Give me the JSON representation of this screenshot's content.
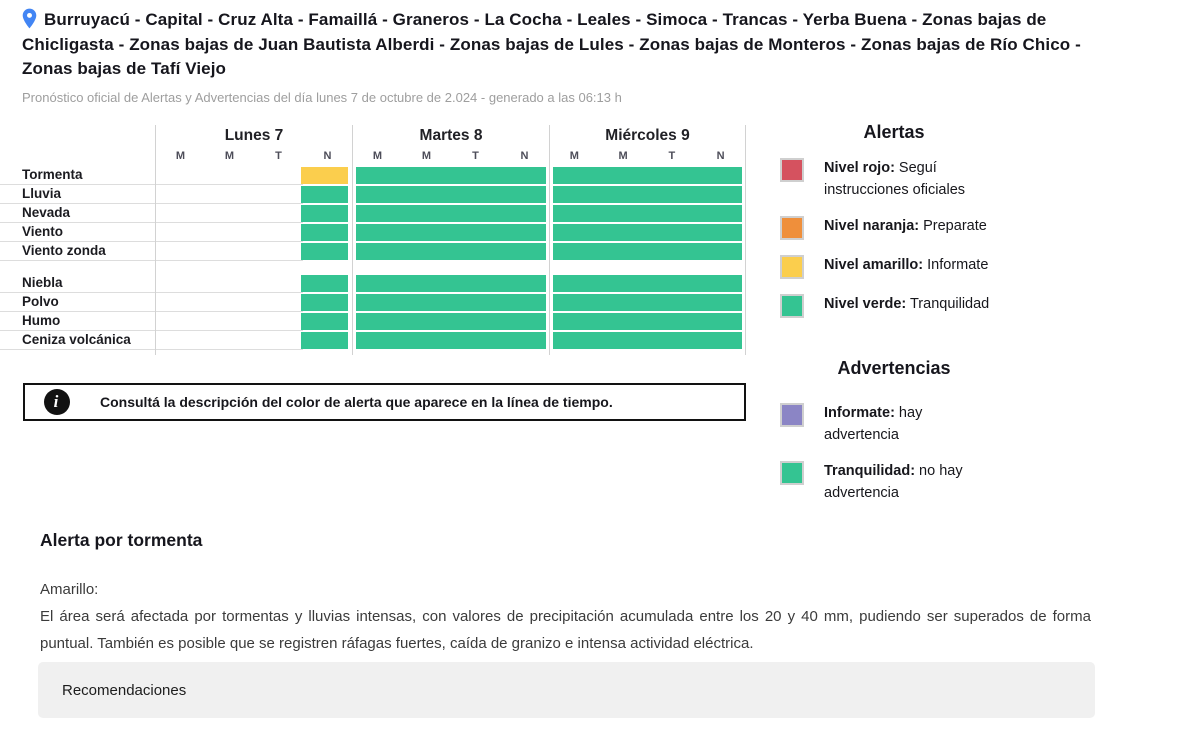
{
  "header": {
    "title": "Burruyacú - Capital - Cruz Alta - Famaillá - Graneros - La Cocha - Leales - Simoca - Trancas - Yerba Buena - Zonas bajas de Chicligasta - Zonas bajas de Juan Bautista Alberdi - Zonas bajas de Lules - Zonas bajas de Monteros - Zonas bajas de Río Chico - Zonas bajas de Tafí Viejo",
    "subtitle": "Pronóstico oficial de Alertas y Advertencias del día lunes 7 de octubre de 2.024 - generado a las 06:13 h"
  },
  "colors": {
    "green": "#34c492",
    "yellow": "#fbce4d",
    "red": "#d5525f",
    "orange": "#ef8f3b",
    "purple": "#8b85c5",
    "pin_blue": "#4285f4"
  },
  "timeline": {
    "days": [
      "Lunes 7",
      "Martes 8",
      "Miércoles 9"
    ],
    "period_labels": [
      "M",
      "M",
      "T",
      "N"
    ],
    "sections": [
      {
        "rows": [
          {
            "label": "Tormenta",
            "cells": [
              {
                "day": 0,
                "period": 3,
                "level": "yellow"
              },
              {
                "day": 1,
                "full": true,
                "level": "green"
              },
              {
                "day": 2,
                "full": true,
                "level": "green"
              }
            ]
          },
          {
            "label": "Lluvia",
            "cells": [
              {
                "day": 0,
                "period": 3,
                "level": "green"
              },
              {
                "day": 1,
                "full": true,
                "level": "green"
              },
              {
                "day": 2,
                "full": true,
                "level": "green"
              }
            ]
          },
          {
            "label": "Nevada",
            "cells": [
              {
                "day": 0,
                "period": 3,
                "level": "green"
              },
              {
                "day": 1,
                "full": true,
                "level": "green"
              },
              {
                "day": 2,
                "full": true,
                "level": "green"
              }
            ]
          },
          {
            "label": "Viento",
            "cells": [
              {
                "day": 0,
                "period": 3,
                "level": "green"
              },
              {
                "day": 1,
                "full": true,
                "level": "green"
              },
              {
                "day": 2,
                "full": true,
                "level": "green"
              }
            ]
          },
          {
            "label": "Viento zonda",
            "cells": [
              {
                "day": 0,
                "period": 3,
                "level": "green"
              },
              {
                "day": 1,
                "full": true,
                "level": "green"
              },
              {
                "day": 2,
                "full": true,
                "level": "green"
              }
            ]
          }
        ]
      },
      {
        "rows": [
          {
            "label": "Niebla",
            "cells": [
              {
                "day": 0,
                "period": 3,
                "level": "green"
              },
              {
                "day": 1,
                "full": true,
                "level": "green"
              },
              {
                "day": 2,
                "full": true,
                "level": "green"
              }
            ]
          },
          {
            "label": "Polvo",
            "cells": [
              {
                "day": 0,
                "period": 3,
                "level": "green"
              },
              {
                "day": 1,
                "full": true,
                "level": "green"
              },
              {
                "day": 2,
                "full": true,
                "level": "green"
              }
            ]
          },
          {
            "label": "Humo",
            "cells": [
              {
                "day": 0,
                "period": 3,
                "level": "green"
              },
              {
                "day": 1,
                "full": true,
                "level": "green"
              },
              {
                "day": 2,
                "full": true,
                "level": "green"
              }
            ]
          },
          {
            "label": "Ceniza volcánica",
            "cells": [
              {
                "day": 0,
                "period": 3,
                "level": "green"
              },
              {
                "day": 1,
                "full": true,
                "level": "green"
              },
              {
                "day": 2,
                "full": true,
                "level": "green"
              }
            ]
          }
        ]
      }
    ]
  },
  "legend": {
    "alerts": {
      "title": "Alertas",
      "items": [
        {
          "color": "red",
          "name": "Nivel rojo:",
          "desc": " Seguí instrucciones oficiales"
        },
        {
          "color": "orange",
          "name": "Nivel naranja:",
          "desc": " Preparate"
        },
        {
          "color": "yellow",
          "name": "Nivel amarillo:",
          "desc": " Informate"
        },
        {
          "color": "green",
          "name": "Nivel verde:",
          "desc": " Tranquilidad"
        }
      ]
    },
    "warnings": {
      "title": "Advertencias",
      "items": [
        {
          "color": "purple",
          "name": "Informate:",
          "desc": " hay advertencia"
        },
        {
          "color": "green",
          "name": "Tranquilidad:",
          "desc": " no hay advertencia"
        }
      ]
    }
  },
  "info_box": {
    "icon": "i",
    "text": "Consultá la descripción del color de alerta que aparece en la línea de tiempo."
  },
  "alert_detail": {
    "title": "Alerta por tormenta",
    "level_label": "Amarillo:",
    "description": "El área será afectada por tormentas y lluvias intensas, con valores de precipitación acumulada entre los 20 y 40 mm, pudiendo ser superados de forma puntual. También es posible que se registren ráfagas fuertes, caída de granizo e intensa actividad eléctrica."
  },
  "recommendations": {
    "label": "Recomendaciones"
  }
}
